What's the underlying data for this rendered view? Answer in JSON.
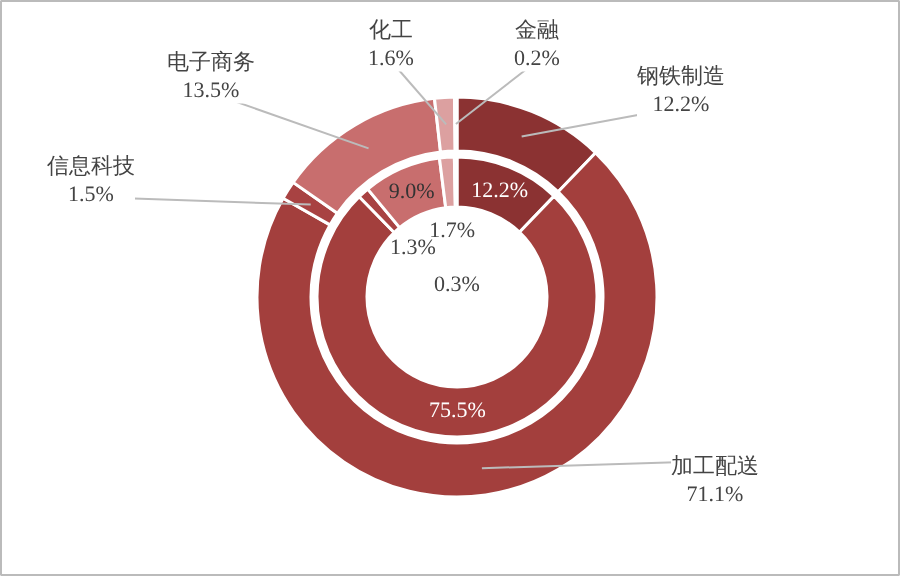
{
  "chart_data": {
    "type": "donut",
    "categories": [
      "钢铁制造",
      "加工配送",
      "信息科技",
      "电子商务",
      "化工",
      "金融"
    ],
    "colors": [
      "#8b3232",
      "#a33f3d",
      "#a84242",
      "#c86e6e",
      "#dca0a0",
      "#c05a5a"
    ],
    "series": [
      {
        "values": [
          12.2,
          71.1,
          1.5,
          13.5,
          1.6,
          0.2
        ],
        "value_labels": [
          "12.2%",
          "71.1%",
          "1.5%",
          "13.5%",
          "1.6%",
          "0.2%"
        ]
      },
      {
        "values": [
          12.2,
          75.5,
          1.3,
          9.0,
          1.7,
          0.3
        ],
        "value_labels": [
          "12.2%",
          "75.5%",
          "1.3%",
          "9.0%",
          "1.7%",
          "0.3%"
        ]
      }
    ]
  }
}
